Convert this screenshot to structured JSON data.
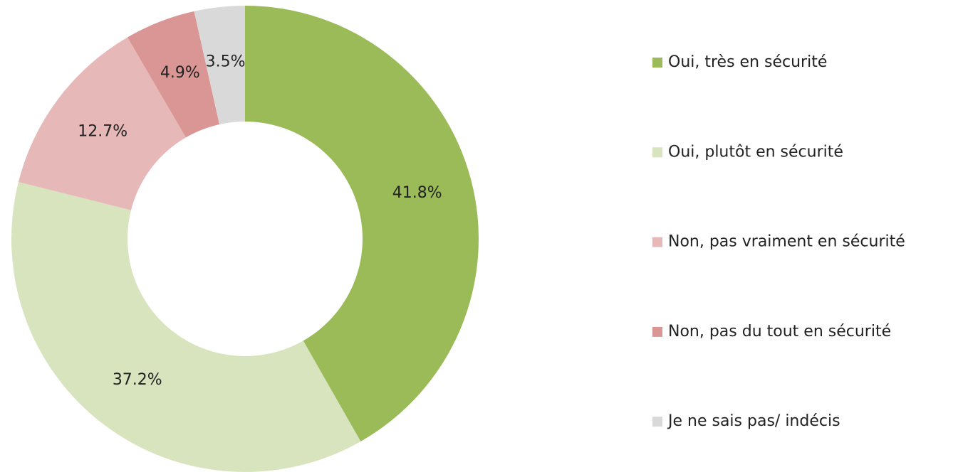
{
  "chart_data": {
    "type": "donut",
    "categories": [
      "Oui, très en sécurité",
      "Oui, plutôt en sécurité",
      "Non, pas vraiment en sécurité",
      "Non, pas du tout en sécurité",
      "Je ne sais pas/ indécis"
    ],
    "values": [
      41.8,
      37.2,
      12.7,
      4.9,
      3.5
    ],
    "value_labels": [
      "41.8%",
      "37.2%",
      "12.7%",
      "4.9%",
      "3.5%"
    ],
    "colors": [
      "#9bbb59",
      "#d7e4bd",
      "#e6b9b8",
      "#d99694",
      "#d9d9d9"
    ],
    "legend": "right"
  }
}
